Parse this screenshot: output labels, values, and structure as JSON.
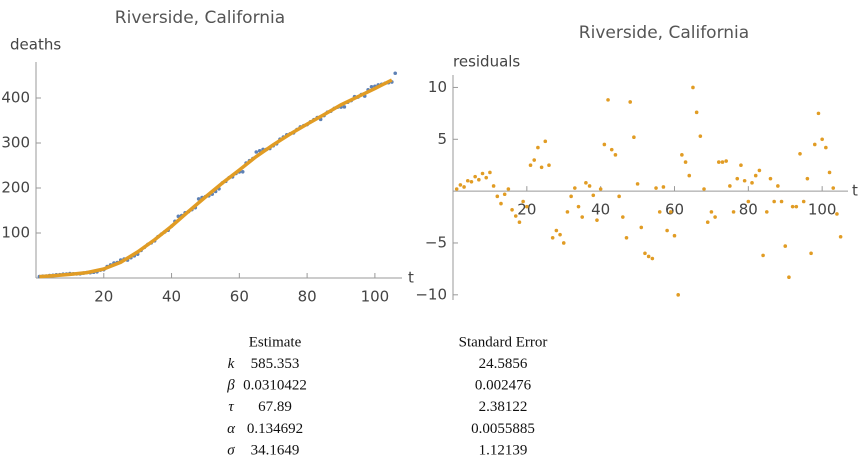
{
  "chart_data": [
    {
      "type": "scatter",
      "title": "Riverside, California",
      "y_label": "deaths",
      "x_label": "t",
      "xlim": [
        0,
        108
      ],
      "ylim": [
        0,
        480
      ],
      "xticks": [
        20,
        40,
        60,
        80,
        100
      ],
      "yticks": [
        100,
        200,
        300,
        400
      ],
      "series": [
        {
          "style": "points",
          "color": "#5e81b5",
          "x": [
            1,
            2,
            3,
            4,
            5,
            6,
            7,
            8,
            9,
            10,
            11,
            12,
            13,
            14,
            15,
            16,
            17,
            18,
            19,
            20,
            21,
            22,
            23,
            24,
            25,
            26,
            27,
            28,
            29,
            30,
            31,
            32,
            33,
            34,
            35,
            36,
            37,
            38,
            39,
            40,
            41,
            42,
            43,
            44,
            45,
            46,
            47,
            48,
            49,
            50,
            51,
            52,
            53,
            54,
            55,
            56,
            57,
            58,
            59,
            60,
            61,
            62,
            63,
            64,
            65,
            66,
            67,
            68,
            69,
            70,
            71,
            72,
            73,
            74,
            75,
            76,
            77,
            78,
            79,
            80,
            81,
            82,
            83,
            84,
            85,
            86,
            87,
            88,
            89,
            90,
            91,
            92,
            93,
            94,
            95,
            96,
            97,
            98,
            99,
            100,
            101,
            102,
            103,
            104,
            105,
            106
          ],
          "values": [
            3.2,
            4.1,
            4.4,
            5.5,
            5.9,
            7.0,
            7.3,
            8.5,
            8.7,
            9.8,
            9.3,
            9.1,
            9.2,
            10.9,
            12.2,
            11.8,
            12.8,
            13.8,
            17.4,
            18.5,
            25.5,
            29,
            33.2,
            34.3,
            39.8,
            42.1,
            39.7,
            45,
            49.2,
            53,
            61.4,
            68.3,
            74.5,
            78.1,
            82.5,
            91.8,
            97.5,
            102.6,
            106.2,
            115.2,
            126.1,
            137,
            138.8,
            144.9,
            147.5,
            151.9,
            156.3,
            175.8,
            178.8,
            180.7,
            182.7,
            186.4,
            192.3,
            198.3,
            211.3,
            214.8,
            223,
            224.6,
            232.2,
            235.7,
            236,
            255.5,
            260.8,
            265.5,
            280,
            282.8,
            285.7,
            285.8,
            287.8,
            294,
            298.3,
            308.4,
            313.2,
            318.1,
            320.5,
            322.4,
            330,
            335.7,
            338.6,
            341,
            347,
            351.9,
            356.6,
            352.6,
            361,
            368.6,
            370.8,
            376.7,
            379.6,
            379.7,
            380.3,
            390.7,
            394.3,
            403,
            402,
            407.8,
            404.2,
            418.3,
            424.9,
            426,
            429,
            430.4,
            432.7,
            434,
            435.6,
            455
          ]
        },
        {
          "style": "line",
          "color": "#e19c24",
          "x": [
            1,
            5,
            10,
            15,
            20,
            25,
            30,
            35,
            40,
            45,
            50,
            55,
            60,
            65,
            70,
            75,
            80,
            85,
            90,
            95,
            100,
            105
          ],
          "values": [
            3,
            5,
            8,
            12,
            20,
            35,
            58,
            85,
            115,
            148,
            180,
            211,
            240,
            270,
            296,
            320,
            342,
            363,
            385,
            403,
            421,
            440
          ]
        }
      ]
    },
    {
      "type": "scatter",
      "title": "Riverside, California",
      "y_label": "residuals",
      "x_label": "t",
      "xlim": [
        0,
        107
      ],
      "ylim": [
        -10.5,
        11.2
      ],
      "xticks": [
        20,
        40,
        60,
        80,
        100
      ],
      "yticks": [
        {
          "value": -10,
          "label": "−10"
        },
        {
          "value": -5,
          "label": "−5"
        },
        5,
        10
      ],
      "series": [
        {
          "style": "points",
          "color": "#e19c24",
          "x": [
            1,
            2,
            3,
            4,
            5,
            6,
            7,
            8,
            9,
            10,
            11,
            12,
            13,
            14,
            15,
            16,
            17,
            18,
            19,
            20,
            21,
            22,
            23,
            24,
            25,
            26,
            27,
            28,
            29,
            30,
            31,
            32,
            33,
            34,
            35,
            36,
            37,
            38,
            39,
            40,
            41,
            42,
            43,
            44,
            45,
            46,
            47,
            48,
            49,
            50,
            51,
            52,
            53,
            54,
            55,
            56,
            57,
            58,
            59,
            60,
            61,
            62,
            63,
            64,
            65,
            66,
            67,
            68,
            69,
            70,
            71,
            72,
            73,
            74,
            75,
            76,
            77,
            78,
            79,
            80,
            81,
            82,
            83,
            84,
            85,
            86,
            87,
            88,
            89,
            90,
            91,
            92,
            93,
            94,
            95,
            96,
            97,
            98,
            99,
            100,
            101,
            102,
            103,
            104,
            105
          ],
          "values": [
            0.2,
            0.6,
            0.4,
            1.0,
            0.9,
            1.4,
            1.1,
            1.7,
            1.3,
            1.8,
            0.5,
            -0.5,
            -1.2,
            -0.3,
            0.2,
            -1.8,
            -2.4,
            -3.0,
            -1.0,
            -1.5,
            2.5,
            3.0,
            4.2,
            2.3,
            4.8,
            2.5,
            -4.5,
            -3.8,
            -4.2,
            -5.0,
            -2.0,
            -0.5,
            0.3,
            -1.5,
            -2.5,
            0.8,
            0.5,
            -0.4,
            -2.8,
            0.2,
            4.5,
            8.8,
            4.0,
            3.5,
            -0.5,
            -2.5,
            -4.5,
            8.6,
            5.2,
            0.7,
            -3.5,
            -6.0,
            -6.3,
            -6.5,
            0.3,
            -2.0,
            0.4,
            -3.8,
            -2.0,
            -4.3,
            -10.0,
            3.5,
            2.8,
            1.5,
            10.0,
            7.6,
            5.3,
            0.2,
            -3.0,
            -2.0,
            -2.5,
            2.8,
            2.8,
            2.9,
            0.5,
            -2.0,
            1.2,
            2.5,
            1.0,
            -1.0,
            0.8,
            1.5,
            2.0,
            -6.2,
            -2.0,
            1.2,
            -1.0,
            0.5,
            -1.0,
            -5.3,
            -8.3,
            -1.5,
            -1.5,
            3.6,
            -1.0,
            1.2,
            -6.0,
            4.5,
            7.5,
            5.0,
            4.2,
            1.8,
            0.3,
            -2.2,
            -4.4
          ]
        }
      ]
    }
  ],
  "table": {
    "columns": [
      "Estimate",
      "Standard Error"
    ],
    "rows": [
      [
        "k",
        "585.353",
        "24.5856"
      ],
      [
        "β",
        "0.0310422",
        "0.002476"
      ],
      [
        "τ",
        "67.89",
        "2.38122"
      ],
      [
        "α",
        "0.134692",
        "0.0055885"
      ],
      [
        "σ",
        "34.1649",
        "1.12139"
      ]
    ]
  }
}
